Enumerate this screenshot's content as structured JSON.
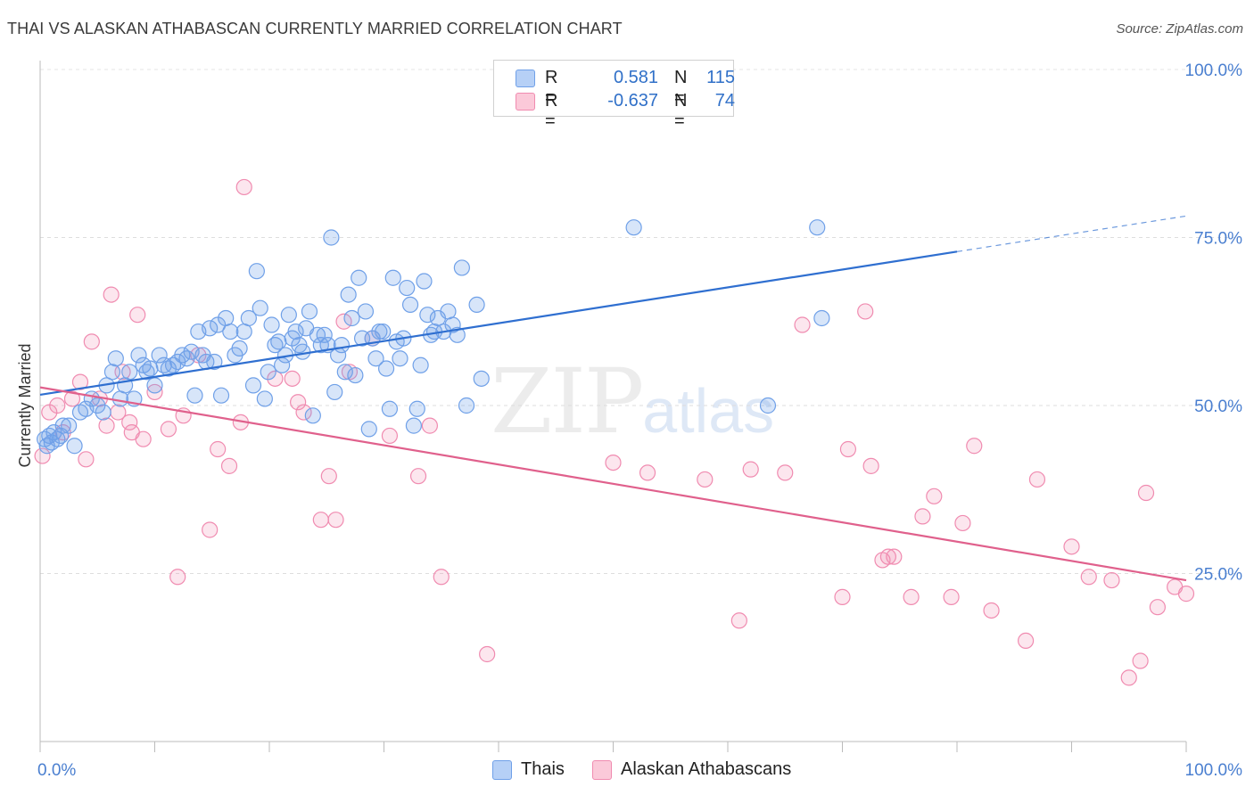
{
  "title": "THAI VS ALASKAN ATHABASCAN CURRENTLY MARRIED CORRELATION CHART",
  "source": "Source: ZipAtlas.com",
  "watermark": {
    "zip": "ZIP",
    "atlas": "atlas"
  },
  "legend": {
    "rows": [
      {
        "r_label": "R =",
        "r_value": "0.581",
        "n_label": "N =",
        "n_value": "115",
        "color": "#6fa0e8"
      },
      {
        "r_label": "R =",
        "r_value": "-0.637",
        "n_label": "N =",
        "n_value": "74",
        "color": "#f08bb0"
      }
    ]
  },
  "bottom_legend": [
    {
      "label": "Thais",
      "color": "#6fa0e8"
    },
    {
      "label": "Alaskan Athabascans",
      "color": "#f08bb0"
    }
  ],
  "chart_data": {
    "type": "scatter",
    "title": "THAI VS ALASKAN ATHABASCAN CURRENTLY MARRIED CORRELATION CHART",
    "xlabel": "",
    "ylabel": "Currently Married",
    "xlim": [
      0,
      100
    ],
    "ylim": [
      0,
      100
    ],
    "x_tick_labels": [
      "0.0%",
      "100.0%"
    ],
    "y_ticks": [
      25,
      50,
      75,
      100
    ],
    "y_tick_labels": [
      "25.0%",
      "50.0%",
      "75.0%",
      "100.0%"
    ],
    "grid": true,
    "legend_position": "top-center",
    "series": [
      {
        "name": "Thais",
        "color": "#6fa0e8",
        "line_color": "#2f6fd0",
        "trend": {
          "x": [
            0,
            80
          ],
          "y": [
            51.6,
            72.9
          ],
          "dashed_to": [
            100,
            78.2
          ]
        },
        "points": [
          [
            0.4,
            45
          ],
          [
            0.6,
            44
          ],
          [
            0.8,
            45.5
          ],
          [
            1.0,
            44.5
          ],
          [
            1.2,
            46
          ],
          [
            1.5,
            45
          ],
          [
            1.8,
            45.5
          ],
          [
            2.0,
            47
          ],
          [
            2.5,
            47
          ],
          [
            3.0,
            44
          ],
          [
            3.5,
            49
          ],
          [
            4.0,
            49.5
          ],
          [
            4.5,
            51
          ],
          [
            5.0,
            50
          ],
          [
            5.5,
            49
          ],
          [
            5.8,
            53
          ],
          [
            6.3,
            55
          ],
          [
            6.6,
            57
          ],
          [
            7.0,
            51
          ],
          [
            7.4,
            53
          ],
          [
            7.8,
            55
          ],
          [
            8.2,
            51
          ],
          [
            8.6,
            57.5
          ],
          [
            9.0,
            56
          ],
          [
            9.3,
            55
          ],
          [
            9.6,
            55.5
          ],
          [
            10.0,
            53
          ],
          [
            10.4,
            57.5
          ],
          [
            10.8,
            56
          ],
          [
            11.2,
            55.5
          ],
          [
            11.6,
            56
          ],
          [
            12.0,
            56.5
          ],
          [
            12.4,
            57.5
          ],
          [
            12.8,
            57
          ],
          [
            13.2,
            58
          ],
          [
            13.5,
            51.5
          ],
          [
            13.8,
            61
          ],
          [
            14.2,
            57.5
          ],
          [
            14.5,
            56.5
          ],
          [
            14.8,
            61.5
          ],
          [
            15.2,
            56.5
          ],
          [
            15.5,
            62
          ],
          [
            15.8,
            51.5
          ],
          [
            16.2,
            63
          ],
          [
            16.6,
            61
          ],
          [
            17.0,
            57.5
          ],
          [
            17.4,
            58.5
          ],
          [
            17.8,
            61
          ],
          [
            18.2,
            63
          ],
          [
            18.6,
            53
          ],
          [
            18.9,
            70
          ],
          [
            19.2,
            64.5
          ],
          [
            19.6,
            51
          ],
          [
            19.9,
            55
          ],
          [
            20.2,
            62
          ],
          [
            20.5,
            59
          ],
          [
            20.8,
            59.5
          ],
          [
            21.1,
            56
          ],
          [
            21.4,
            57.5
          ],
          [
            21.7,
            63.5
          ],
          [
            22.0,
            60
          ],
          [
            22.3,
            61
          ],
          [
            22.6,
            59
          ],
          [
            22.9,
            58
          ],
          [
            23.2,
            61.5
          ],
          [
            23.5,
            64
          ],
          [
            23.8,
            48.5
          ],
          [
            24.2,
            60.5
          ],
          [
            24.5,
            59
          ],
          [
            24.8,
            60.5
          ],
          [
            25.1,
            59
          ],
          [
            25.4,
            75
          ],
          [
            25.7,
            52
          ],
          [
            26.0,
            57.5
          ],
          [
            26.3,
            59
          ],
          [
            26.6,
            55
          ],
          [
            26.9,
            66.5
          ],
          [
            27.2,
            63
          ],
          [
            27.5,
            54.5
          ],
          [
            27.8,
            69
          ],
          [
            28.1,
            60
          ],
          [
            28.4,
            64
          ],
          [
            28.7,
            46.5
          ],
          [
            29.0,
            60
          ],
          [
            29.3,
            57
          ],
          [
            29.6,
            61
          ],
          [
            29.9,
            61
          ],
          [
            30.2,
            55.5
          ],
          [
            30.5,
            49.5
          ],
          [
            30.8,
            69
          ],
          [
            31.1,
            59.5
          ],
          [
            31.4,
            57
          ],
          [
            31.7,
            60
          ],
          [
            32.0,
            67.5
          ],
          [
            32.3,
            65
          ],
          [
            32.6,
            47
          ],
          [
            32.9,
            49.5
          ],
          [
            33.2,
            56
          ],
          [
            33.5,
            68.5
          ],
          [
            33.8,
            63.5
          ],
          [
            34.1,
            60.5
          ],
          [
            34.4,
            61
          ],
          [
            34.7,
            63
          ],
          [
            35.2,
            61
          ],
          [
            35.6,
            64
          ],
          [
            36.0,
            62
          ],
          [
            36.4,
            60.5
          ],
          [
            36.8,
            70.5
          ],
          [
            37.2,
            50
          ],
          [
            38.1,
            65
          ],
          [
            38.5,
            54
          ],
          [
            51.8,
            76.5
          ],
          [
            67.8,
            76.5
          ],
          [
            68.2,
            63
          ],
          [
            63.5,
            50
          ]
        ]
      },
      {
        "name": "Alaskan Athabascans",
        "color": "#f08bb0",
        "line_color": "#e0608c",
        "trend": {
          "x": [
            0,
            100
          ],
          "y": [
            52.7,
            24.0
          ]
        },
        "points": [
          [
            0.2,
            42.5
          ],
          [
            0.8,
            49
          ],
          [
            1.5,
            50
          ],
          [
            2.0,
            46
          ],
          [
            2.8,
            51
          ],
          [
            3.5,
            53.5
          ],
          [
            4.0,
            42
          ],
          [
            4.5,
            59.5
          ],
          [
            5.2,
            51
          ],
          [
            5.8,
            47
          ],
          [
            6.2,
            66.5
          ],
          [
            6.8,
            49
          ],
          [
            7.2,
            55
          ],
          [
            7.8,
            47.5
          ],
          [
            8.5,
            63.5
          ],
          [
            9.0,
            45
          ],
          [
            10.0,
            52
          ],
          [
            11.2,
            46.5
          ],
          [
            12.0,
            24.5
          ],
          [
            13.8,
            57.5
          ],
          [
            14.8,
            31.5
          ],
          [
            15.5,
            43.5
          ],
          [
            16.5,
            41
          ],
          [
            17.5,
            47.5
          ],
          [
            17.8,
            82.5
          ],
          [
            20.5,
            54
          ],
          [
            22.0,
            54
          ],
          [
            22.5,
            50.5
          ],
          [
            23.0,
            49
          ],
          [
            24.5,
            33
          ],
          [
            25.2,
            39.5
          ],
          [
            25.8,
            33
          ],
          [
            26.5,
            62.5
          ],
          [
            27.0,
            55
          ],
          [
            29.0,
            60
          ],
          [
            30.5,
            45.5
          ],
          [
            33.0,
            39.5
          ],
          [
            34.0,
            47
          ],
          [
            35.0,
            24.5
          ],
          [
            39.0,
            13
          ],
          [
            50.0,
            41.5
          ],
          [
            53.0,
            40
          ],
          [
            58.0,
            39
          ],
          [
            61.0,
            18
          ],
          [
            62.0,
            40.5
          ],
          [
            65.0,
            40
          ],
          [
            66.5,
            62
          ],
          [
            70.0,
            21.5
          ],
          [
            70.5,
            43.5
          ],
          [
            72.0,
            64
          ],
          [
            72.5,
            41
          ],
          [
            73.5,
            27
          ],
          [
            74.0,
            27.5
          ],
          [
            74.5,
            27.5
          ],
          [
            76.0,
            21.5
          ],
          [
            77.0,
            33.5
          ],
          [
            78.0,
            36.5
          ],
          [
            79.5,
            21.5
          ],
          [
            80.5,
            32.5
          ],
          [
            81.5,
            44
          ],
          [
            83.0,
            19.5
          ],
          [
            86.0,
            15
          ],
          [
            87.0,
            39
          ],
          [
            90.0,
            29
          ],
          [
            91.5,
            24.5
          ],
          [
            93.5,
            24
          ],
          [
            95.0,
            9.5
          ],
          [
            96.0,
            12
          ],
          [
            96.5,
            37
          ],
          [
            97.5,
            20
          ],
          [
            99.0,
            23
          ],
          [
            100.0,
            22
          ],
          [
            12.5,
            48.5
          ],
          [
            8.0,
            46
          ]
        ]
      }
    ]
  }
}
